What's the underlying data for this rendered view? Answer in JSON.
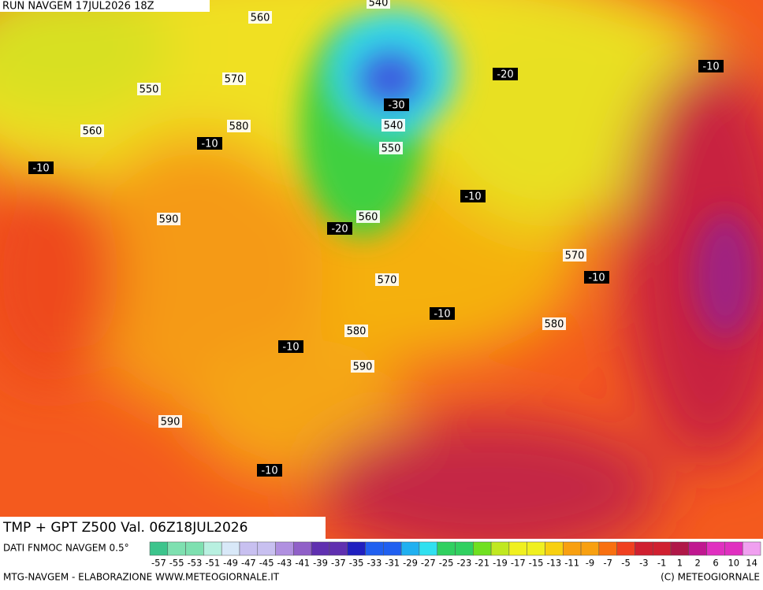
{
  "header": "RUN NAVGEM 17JUL2026 18Z",
  "map_labels": [
    "540",
    "560",
    "550",
    "570",
    "560",
    "580",
    "-10",
    "-10",
    "-20",
    "-30",
    "540",
    "550",
    "-10",
    "-10",
    "590",
    "560",
    "-20",
    "570",
    "-10",
    "570",
    "-10",
    "580",
    "580",
    "-10",
    "590",
    "590",
    "-10"
  ],
  "product_title": "TMP + GPT Z500 Val. 06Z18JUL2026",
  "source": "DATI FNMOC NAVGEM 0.5°",
  "scale_labels": [
    -57,
    -55,
    -53,
    -51,
    -49,
    -47,
    -45,
    -43,
    -41,
    -39,
    -37,
    -35,
    -33,
    -31,
    -29,
    -27,
    -25,
    -23,
    -21,
    -19,
    -17,
    -15,
    -13,
    -11,
    -9,
    -7,
    -5,
    -3,
    -1,
    1,
    2,
    6,
    10,
    14
  ],
  "footer_left": "MTG-NAVGEM - ELABORAZIONE WWW.METEOGIORNALE.IT",
  "footer_right": "(C) METEOGIORNALE"
}
